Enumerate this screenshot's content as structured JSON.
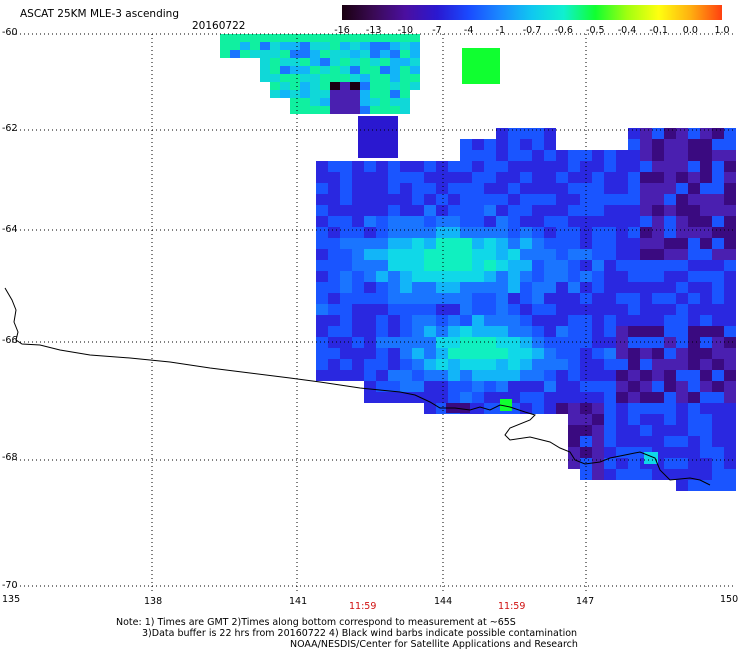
{
  "header": {
    "title": "ASCAT 25KM MLE-3 ascending",
    "date": "20160722"
  },
  "colorbar": {
    "labels": [
      "-16",
      "-13",
      "-10",
      "-7",
      "-4",
      "-1",
      "-0.7",
      "-0.6",
      "-0.5",
      "-0.4",
      "-0.1",
      "0.0",
      "1.0"
    ],
    "colors": [
      "#1a0010",
      "#3a0a55",
      "#4b0fa0",
      "#2a18d0",
      "#1a4aff",
      "#1a8aff",
      "#10c8f0",
      "#10f0d0",
      "#10ff30",
      "#a0ff10",
      "#ffff10",
      "#ffb010",
      "#ff4010"
    ]
  },
  "axes": {
    "lat_labels": [
      "-60",
      "-62",
      "-64",
      "-66",
      "-68",
      "-70"
    ],
    "lon_labels": [
      "135",
      "138",
      "141",
      "144",
      "147",
      "150"
    ]
  },
  "times": [
    "11:59",
    "11:59"
  ],
  "footer": {
    "line1": "Note: 1) Times are GMT 2)Times along bottom correspond to measurement at ~65S",
    "line2": "3)Data buffer is 22 hrs from 20160722 4) Black wind barbs indicate possible contamination",
    "line3": "NOAA/NESDIS/Center for Satellite Applications and Research"
  }
}
